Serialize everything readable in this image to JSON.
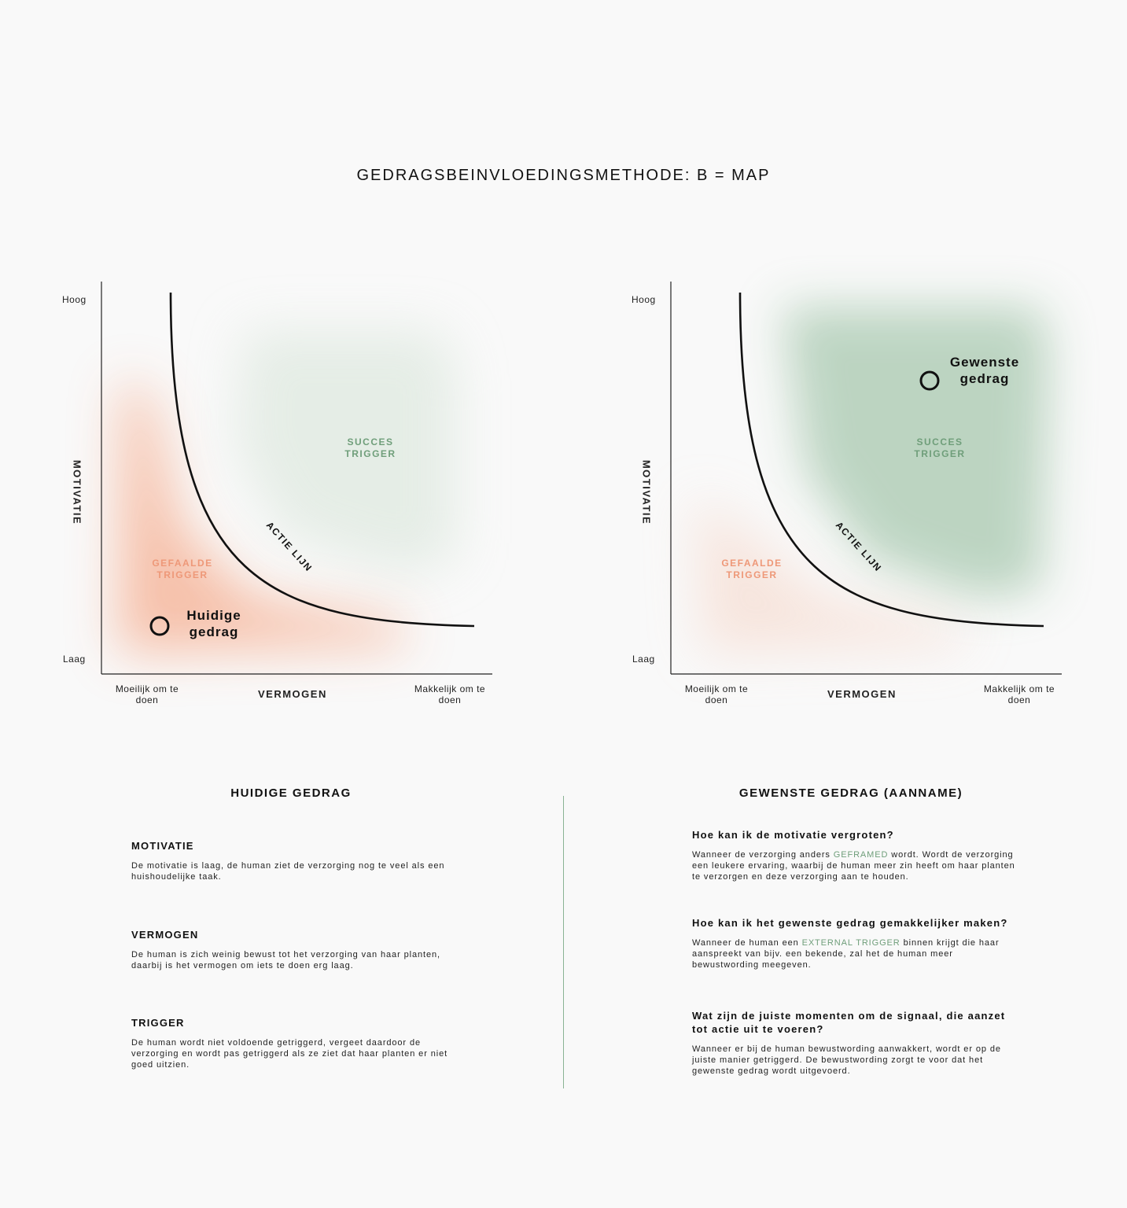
{
  "title": "GEDRAGSBEINVLOEDINGSMETHODE: B = MAP",
  "colors": {
    "accent_green": "#6f9e7a",
    "accent_orange": "#ee9878",
    "line": "#111111"
  },
  "diagrams": [
    {
      "y_axis_title": "MOTIVATIE",
      "y_high": "Hoog",
      "y_low": "Laag",
      "x_axis_title": "VERMOGEN",
      "x_min": "Moeilijk om te doen",
      "x_max": "Makkelijk om te doen",
      "curve_label": "ACTIE LIJN",
      "success_zone": {
        "line1": "SUCCES",
        "line2": "TRIGGER"
      },
      "fail_zone": {
        "line1": "GEFAALDE",
        "line2": "TRIGGER"
      },
      "point_label": {
        "line1": "Huidige",
        "line2": "gedrag"
      },
      "emphasis": "fail"
    },
    {
      "y_axis_title": "MOTIVATIE",
      "y_high": "Hoog",
      "y_low": "Laag",
      "x_axis_title": "VERMOGEN",
      "x_min": "Moeilijk om te doen",
      "x_max": "Makkelijk om te doen",
      "curve_label": "ACTIE LIJN",
      "success_zone": {
        "line1": "SUCCES",
        "line2": "TRIGGER"
      },
      "fail_zone": {
        "line1": "GEFAALDE",
        "line2": "TRIGGER"
      },
      "point_label": {
        "line1": "Gewenste",
        "line2": "gedrag"
      },
      "emphasis": "success"
    }
  ],
  "current": {
    "heading": "HUIDIGE GEDRAG",
    "blocks": [
      {
        "title": "MOTIVATIE",
        "text": "De motivatie is laag, de human ziet de verzorging nog te veel als een huishoudelijke taak."
      },
      {
        "title": "VERMOGEN",
        "text": "De human is zich weinig bewust tot het verzorging van haar planten, daarbij is het vermogen om iets te doen erg laag."
      },
      {
        "title": "TRIGGER",
        "text": "De human wordt niet voldoende getriggerd, vergeet daardoor de verzorging en wordt pas getriggerd als ze ziet dat haar planten er niet goed uitzien."
      }
    ]
  },
  "desired": {
    "heading": "GEWENSTE GEDRAG (AANNAME)",
    "blocks": [
      {
        "title": "Hoe kan ik de motivatie vergroten?",
        "text_before": "Wanneer de verzorging anders ",
        "highlight": "GEFRAMED",
        "text_after": " wordt. Wordt de verzorging een leukere ervaring, waarbij de human meer zin heeft om haar planten te verzorgen en deze verzorging aan te houden."
      },
      {
        "title": "Hoe kan ik het gewenste gedrag gemakkelijker maken?",
        "text_before": "Wanneer de human een ",
        "highlight": "EXTERNAL TRIGGER",
        "text_after": " binnen krijgt die haar aanspreekt van bijv. een bekende, zal het de human meer bewustwording meegeven."
      },
      {
        "title": "Wat zijn de juiste momenten om de signaal, die aanzet tot actie uit te voeren?",
        "text": "Wanneer er bij de human bewustwording aanwakkert, wordt er op de juiste manier getriggerd. De bewustwording zorgt te voor dat het gewenste gedrag wordt uitgevoerd."
      }
    ]
  }
}
